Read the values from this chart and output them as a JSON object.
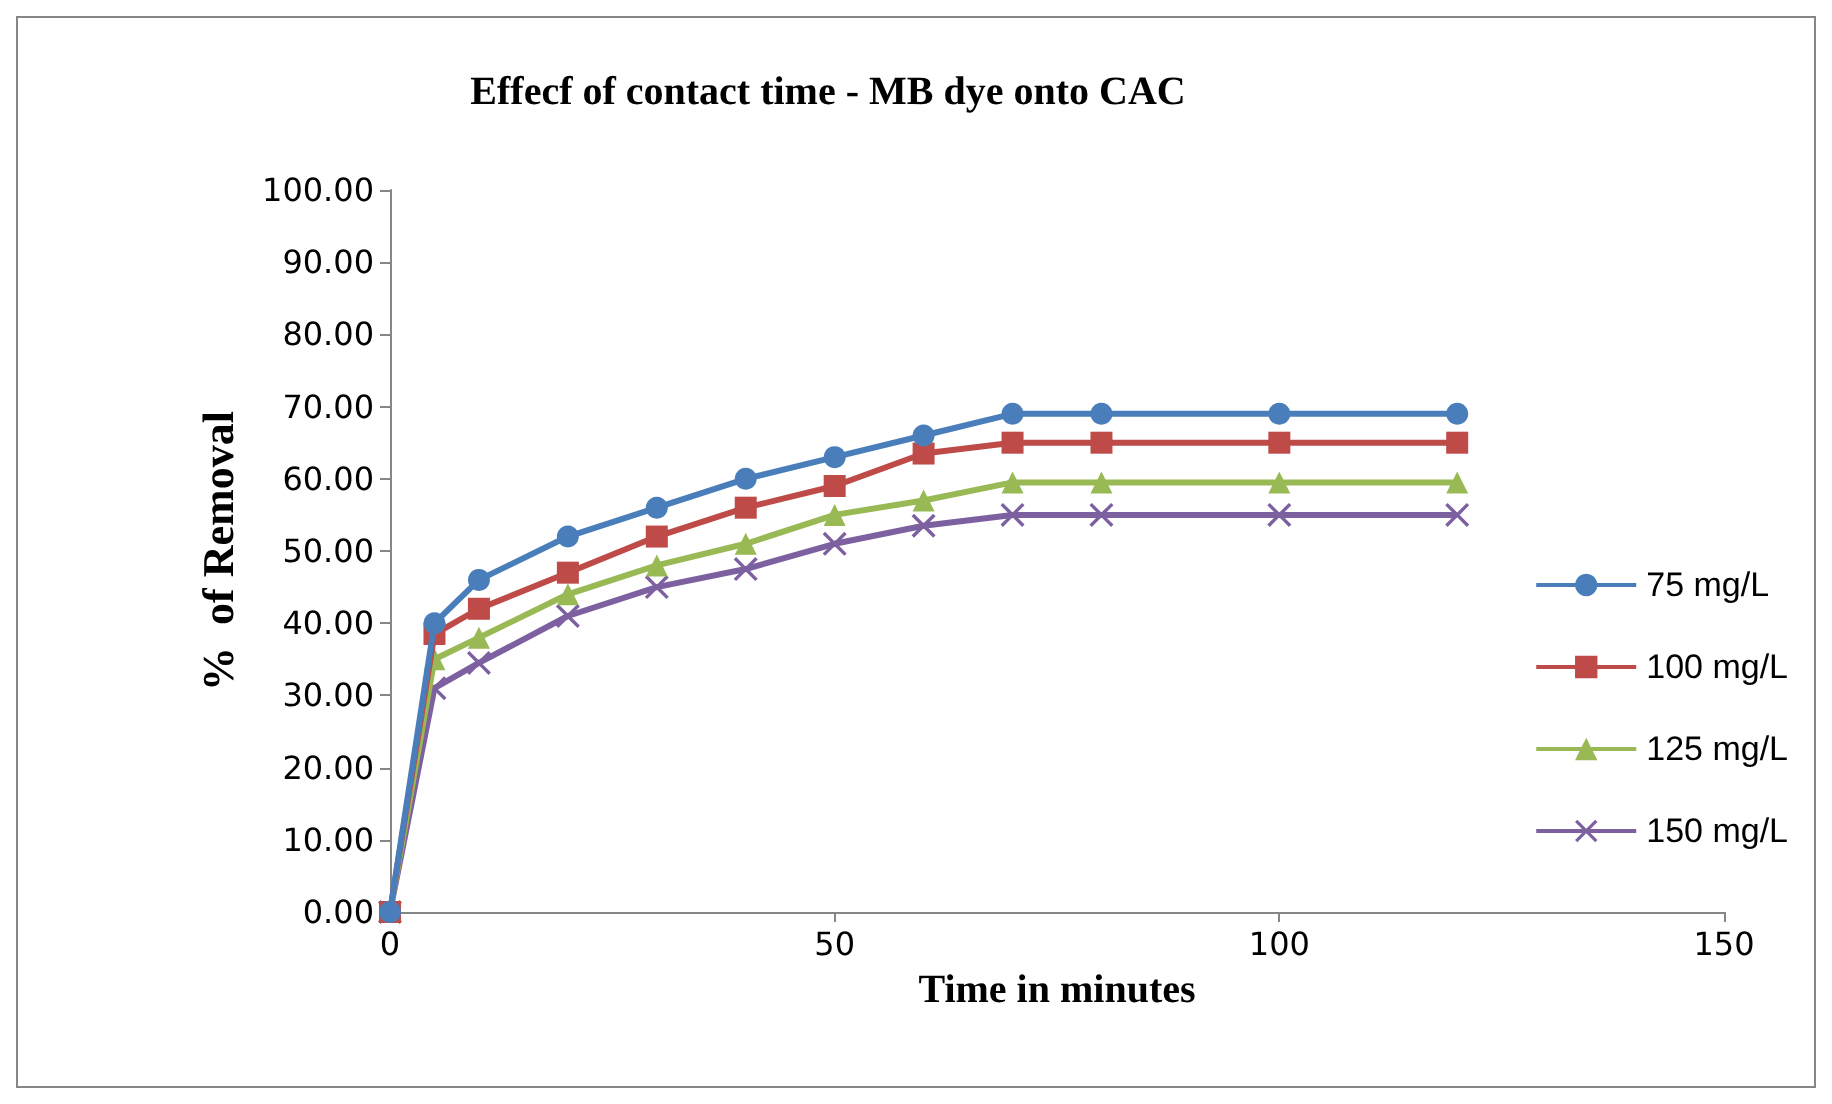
{
  "chart_data": {
    "type": "line",
    "title": "Effecf of contact time - MB dye onto CAC",
    "xlabel": "Time in minutes",
    "ylabel": "%  of Removal",
    "x": [
      0,
      5,
      10,
      20,
      30,
      40,
      50,
      60,
      70,
      80,
      100,
      120
    ],
    "series": [
      {
        "name": "75 mg/L",
        "color": "#4a7ebb",
        "marker": "circle",
        "values": [
          0,
          40,
          46,
          52,
          56,
          60,
          63,
          66,
          69,
          69,
          69,
          69
        ]
      },
      {
        "name": "100 mg/L",
        "color": "#be4b48",
        "marker": "square",
        "values": [
          0,
          38.5,
          42,
          47,
          52,
          56,
          59,
          63.5,
          65,
          65,
          65,
          65
        ]
      },
      {
        "name": "125 mg/L",
        "color": "#98b954",
        "marker": "triangle",
        "values": [
          0,
          35,
          38,
          44,
          48,
          51,
          55,
          57,
          59.5,
          59.5,
          59.5,
          59.5
        ]
      },
      {
        "name": "150 mg/L",
        "color": "#7d60a0",
        "marker": "cross",
        "values": [
          0,
          31,
          34.5,
          41,
          45,
          47.5,
          51,
          53.5,
          55,
          55,
          55,
          55
        ]
      }
    ],
    "xlim": [
      0,
      150
    ],
    "xticks": [
      0,
      50,
      100,
      150
    ],
    "ylim": [
      0,
      100
    ],
    "yticks": [
      {
        "value": 0,
        "label": "0.00"
      },
      {
        "value": 10,
        "label": "10.00"
      },
      {
        "value": 20,
        "label": "20.00"
      },
      {
        "value": 30,
        "label": "30.00"
      },
      {
        "value": 40,
        "label": "40.00"
      },
      {
        "value": 50,
        "label": "50.00"
      },
      {
        "value": 60,
        "label": "60.00"
      },
      {
        "value": 70,
        "label": "70.00"
      },
      {
        "value": 80,
        "label": "80.00"
      },
      {
        "value": 90,
        "label": "90.00"
      },
      {
        "value": 100,
        "label": "100.00"
      }
    ],
    "grid": false,
    "legend": "right",
    "line_style": "solid"
  }
}
